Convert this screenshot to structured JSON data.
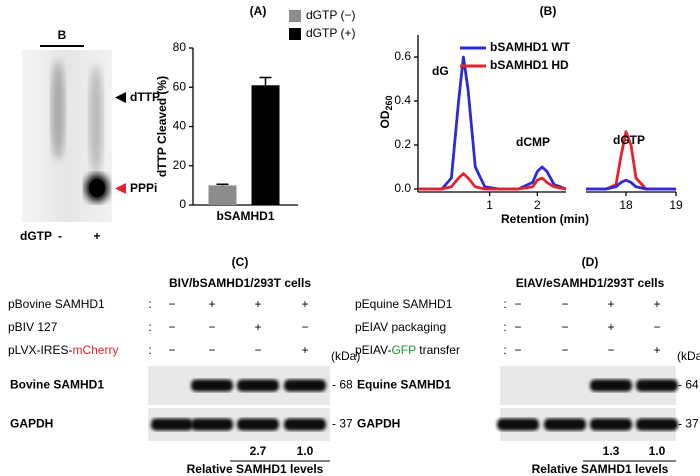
{
  "tlc": {
    "lane_header": "B",
    "markers": [
      {
        "label": "dTTP",
        "color": "#000000"
      },
      {
        "label": "PPPi",
        "color": "#e5232b"
      }
    ],
    "row_label": "dGTP",
    "lanes": [
      "-",
      "+"
    ]
  },
  "chart_data": [
    {
      "type": "bar",
      "title": "(A)",
      "y_label": "dTTP Cleaved (%)",
      "categories": [
        "bSAMHD1"
      ],
      "series": [
        {
          "name": "dGTP (−)",
          "color": "#8c8c8c",
          "values": [
            10
          ],
          "errors": [
            0.6
          ]
        },
        {
          "name": "dGTP (+)",
          "color": "#000000",
          "values": [
            61
          ],
          "errors": [
            4
          ]
        }
      ],
      "ylim": [
        0,
        80
      ],
      "yticks": [
        0,
        20,
        40,
        60,
        80
      ],
      "legend": "top-right"
    },
    {
      "type": "line",
      "title": "(B)",
      "y_label": "OD",
      "y_label_sub": "260",
      "x_label": "Retention (min)",
      "x": [
        -0.5,
        0,
        0.2,
        0.35,
        0.45,
        0.55,
        0.7,
        0.9,
        1.2,
        1.6,
        1.9,
        2.0,
        2.1,
        2.2,
        2.35,
        2.6
      ],
      "series": [
        {
          "name": "bSAMHD1 WT",
          "color": "#2b2bd9",
          "values": [
            0,
            0,
            0.05,
            0.4,
            0.6,
            0.45,
            0.1,
            0.01,
            0,
            0,
            0.03,
            0.08,
            0.1,
            0.08,
            0.02,
            0
          ]
        },
        {
          "name": "bSAMHD1 HD",
          "color": "#e5232b",
          "values": [
            0,
            0,
            0.01,
            0.05,
            0.07,
            0.05,
            0.01,
            0,
            0,
            0,
            0.01,
            0.04,
            0.05,
            0.03,
            0.01,
            0
          ]
        }
      ],
      "xlim": [
        -0.5,
        2.6
      ],
      "xticks": [
        1,
        2
      ],
      "ylim": [
        0,
        0.7
      ],
      "yticks": [
        {
          "value": 0,
          "label": "0.0"
        },
        0.2,
        0.4,
        0.6
      ],
      "annotations": [
        "dG",
        "dCMP"
      ],
      "legend": "top-right"
    },
    {
      "type": "line",
      "x": [
        17.2,
        17.6,
        17.8,
        17.9,
        18,
        18.1,
        18.2,
        18.4,
        18.8,
        19
      ],
      "series": [
        {
          "color": "#e5232b",
          "values": [
            0,
            0,
            0.02,
            0.15,
            0.26,
            0.2,
            0.05,
            0,
            0,
            0
          ]
        },
        {
          "color": "#2b2bd9",
          "values": [
            0,
            0,
            0.01,
            0.03,
            0.04,
            0.03,
            0.01,
            0,
            0,
            0
          ]
        }
      ],
      "xlim": [
        17.2,
        19
      ],
      "xticks": [
        18,
        19
      ],
      "ylim": [
        0,
        0.7
      ],
      "annotations": [
        "dGTP"
      ]
    }
  ],
  "blots": [
    {
      "title": "(C)",
      "subtitle": "BIV/bSAMHD1/293T cells",
      "separator": ":",
      "rows": [
        {
          "label": "pBovine SAMHD1",
          "signs": [
            "−",
            "+",
            "+",
            "+"
          ]
        },
        {
          "label": "pBIV 127",
          "signs": [
            "−",
            "−",
            "+",
            "−"
          ]
        },
        {
          "label": "pLVX-IRES-",
          "highlight": "mCherry",
          "highlight_color": "#e5232b",
          "signs": [
            "−",
            "−",
            "−",
            "+"
          ]
        }
      ],
      "bands": [
        {
          "label": "Bovine SAMHD1",
          "marker": "- 68"
        },
        {
          "label": "GAPDH",
          "marker": "- 37"
        }
      ],
      "unit": "(kDa)",
      "levels": [
        "2.7",
        "1.0"
      ],
      "levels_label": "Relative SAMHD1 levels"
    },
    {
      "title": "(D)",
      "subtitle": "EIAV/eSAMHD1/293T cells",
      "separator": ":",
      "rows": [
        {
          "label": "pEquine SAMHD1",
          "signs": [
            "−",
            "−",
            "+",
            "+"
          ]
        },
        {
          "label": "pEIAV packaging",
          "signs": [
            "−",
            "−",
            "+",
            "−"
          ]
        },
        {
          "label": "pEIAV-",
          "highlight": "GFP",
          "highlight_color": "#1a9a2a",
          "suffix": " transfer",
          "signs": [
            "−",
            "−",
            "−",
            "+"
          ]
        }
      ],
      "bands": [
        {
          "label": "Equine SAMHD1",
          "marker": "- 64"
        },
        {
          "label": "GAPDH",
          "marker": "- 37"
        }
      ],
      "unit": "(kDa)",
      "levels": [
        "1.3",
        "1.0"
      ],
      "levels_label": "Relative SAMHD1 levels"
    }
  ]
}
